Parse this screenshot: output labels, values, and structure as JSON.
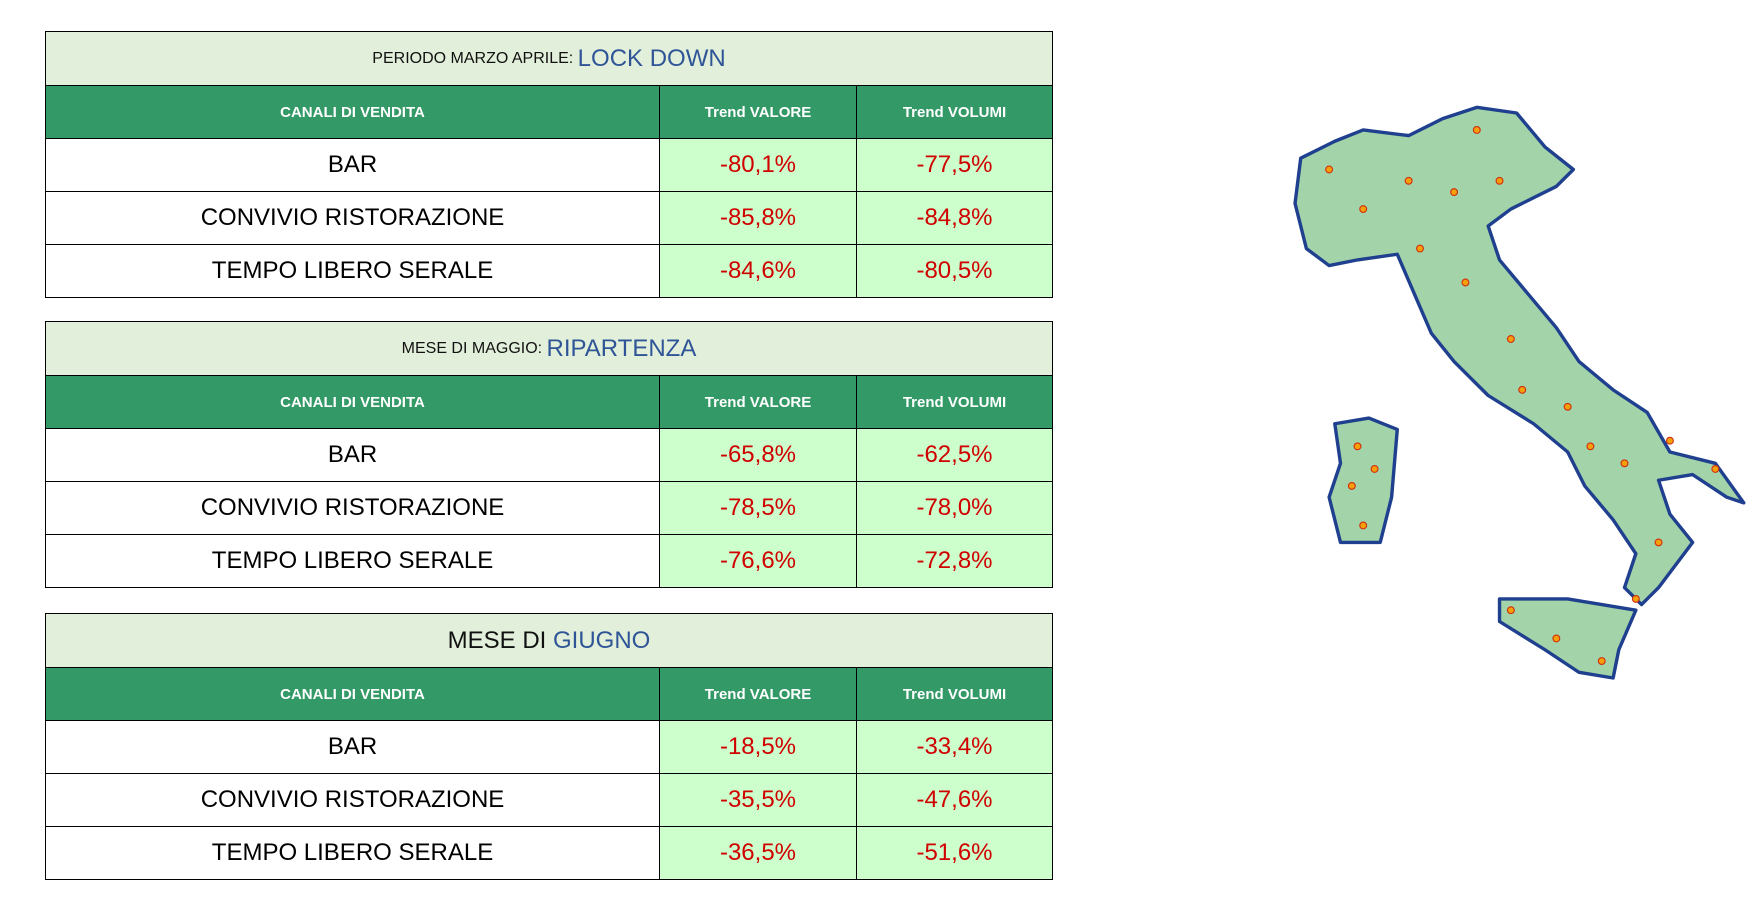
{
  "tables": [
    {
      "title_prefix": "PERIODO MARZO APRILE: ",
      "title_highlight": "LOCK DOWN",
      "title_size": "small",
      "headers": [
        "CANALI DI VENDITA",
        "Trend VALORE",
        "Trend VOLUMI"
      ],
      "rows": [
        [
          "BAR",
          "-80,1%",
          "-77,5%"
        ],
        [
          "CONVIVIO RISTORAZIONE",
          "-85,8%",
          "-84,8%"
        ],
        [
          "TEMPO LIBERO SERALE",
          "-84,6%",
          "-80,5%"
        ]
      ]
    },
    {
      "title_prefix": "MESE DI MAGGIO: ",
      "title_highlight": "RIPARTENZA",
      "title_size": "small",
      "headers": [
        "CANALI DI VENDITA",
        "Trend VALORE",
        "Trend VOLUMI"
      ],
      "rows": [
        [
          "BAR",
          "-65,8%",
          "-62,5%"
        ],
        [
          "CONVIVIO RISTORAZIONE",
          "-78,5%",
          "-78,0%"
        ],
        [
          "TEMPO LIBERO SERALE",
          "-76,6%",
          "-72,8%"
        ]
      ]
    },
    {
      "title_prefix": "MESE DI ",
      "title_highlight": "GIUGNO",
      "title_size": "large",
      "headers": [
        "CANALI DI VENDITA",
        "Trend VALORE",
        "Trend VOLUMI"
      ],
      "rows": [
        [
          "BAR",
          "-18,5%",
          "-33,4%"
        ],
        [
          "CONVIVIO RISTORAZIONE",
          "-35,5%",
          "-47,6%"
        ],
        [
          "TEMPO LIBERO SERALE",
          "-36,5%",
          "-51,6%"
        ]
      ]
    }
  ]
}
